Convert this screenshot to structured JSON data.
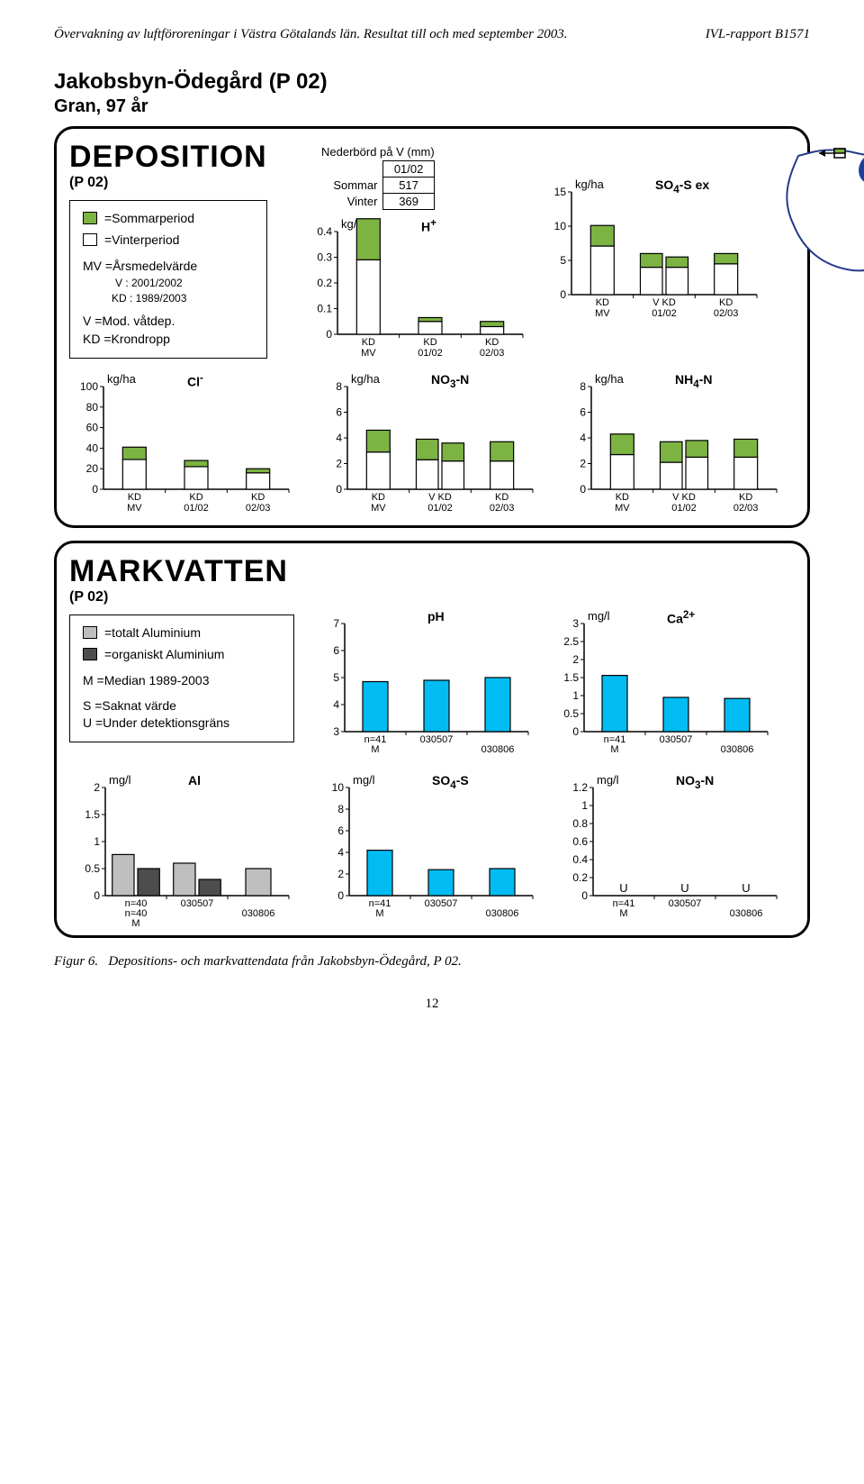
{
  "header": {
    "left": "Övervakning av luftföroreningar i Västra Götalands län. Resultat till och med september 2003.",
    "right": "IVL-rapport B1571"
  },
  "station": {
    "title": "Jakobsbyn-Ödegård (P 02)",
    "subtitle": "Gran, 97 år"
  },
  "deposition": {
    "heading": "DEPOSITION",
    "pcode": "(P 02)",
    "precip": {
      "caption": "Nederbörd på V (mm)",
      "period": "01/02",
      "rows": [
        {
          "label": "Sommar",
          "value": "517"
        },
        {
          "label": "Vinter",
          "value": "369"
        }
      ]
    },
    "legend": {
      "summer_label": "=Sommarperiod",
      "summer_color": "#7cb342",
      "winter_label": "=Vinterperiod",
      "winter_color": "#ffffff",
      "mv_label": "MV =Årsmedelvärde",
      "v_kd_lines": [
        "V : 2001/2002",
        "KD : 1989/2003"
      ],
      "v_label": "V =Mod. våtdep.",
      "kd_label": "KD =Krondropp"
    },
    "charts_top": [
      {
        "id": "h_plus",
        "ylabel": "kg/ha",
        "title_html": "H<sup>+</sup>",
        "ylim": [
          0,
          0.4
        ],
        "ytick_step": 0.1,
        "groups": [
          {
            "bottom_labels": [
              "KD",
              "MV"
            ],
            "bars": [
              {
                "s": 0.16,
                "w": 0.29
              }
            ]
          },
          {
            "bottom_labels": [
              "KD",
              "01/02"
            ],
            "bars": [
              {
                "s": 0.015,
                "w": 0.05
              }
            ]
          },
          {
            "bottom_labels": [
              "KD",
              "02/03"
            ],
            "bars": [
              {
                "s": 0.02,
                "w": 0.03
              }
            ]
          }
        ]
      },
      {
        "id": "so4s",
        "ylabel": "kg/ha",
        "title_html": "SO<sub>4</sub>-S ex",
        "ylim": [
          0,
          15
        ],
        "ytick_step": 5,
        "groups": [
          {
            "bottom_labels": [
              "KD",
              "MV"
            ],
            "bars": [
              {
                "s": 3.0,
                "w": 7.1
              }
            ]
          },
          {
            "bottom_labels": [
              "V  KD",
              "01/02"
            ],
            "bars": [
              {
                "s": 2.0,
                "w": 4.0
              },
              {
                "s": 1.5,
                "w": 4.0
              }
            ]
          },
          {
            "bottom_labels": [
              "KD",
              "02/03"
            ],
            "bars": [
              {
                "s": 1.5,
                "w": 4.5
              }
            ]
          }
        ]
      }
    ],
    "charts_row2": [
      {
        "id": "cl",
        "ylabel": "kg/ha",
        "title_html": "Cl<sup>-</sup>",
        "ylim": [
          0,
          100
        ],
        "ytick_step": 20,
        "groups": [
          {
            "bottom_labels": [
              "KD",
              "MV"
            ],
            "bars": [
              {
                "s": 12,
                "w": 29
              }
            ]
          },
          {
            "bottom_labels": [
              "KD",
              "01/02"
            ],
            "bars": [
              {
                "s": 6,
                "w": 22
              }
            ]
          },
          {
            "bottom_labels": [
              "KD",
              "02/03"
            ],
            "bars": [
              {
                "s": 4,
                "w": 16
              }
            ]
          }
        ]
      },
      {
        "id": "no3n",
        "ylabel": "kg/ha",
        "title_html": "NO<sub>3</sub>-N",
        "ylim": [
          0,
          8
        ],
        "ytick_step": 2,
        "groups": [
          {
            "bottom_labels": [
              "KD",
              "MV"
            ],
            "bars": [
              {
                "s": 1.7,
                "w": 2.9
              }
            ]
          },
          {
            "bottom_labels": [
              "V  KD",
              "01/02"
            ],
            "bars": [
              {
                "s": 1.6,
                "w": 2.3
              },
              {
                "s": 1.4,
                "w": 2.2
              }
            ]
          },
          {
            "bottom_labels": [
              "KD",
              "02/03"
            ],
            "bars": [
              {
                "s": 1.5,
                "w": 2.2
              }
            ]
          }
        ]
      },
      {
        "id": "nh4n",
        "ylabel": "kg/ha",
        "title_html": "NH<sub>4</sub>-N",
        "ylim": [
          0,
          8
        ],
        "ytick_step": 2,
        "groups": [
          {
            "bottom_labels": [
              "KD",
              "MV"
            ],
            "bars": [
              {
                "s": 1.6,
                "w": 2.7
              }
            ]
          },
          {
            "bottom_labels": [
              "V  KD",
              "01/02"
            ],
            "bars": [
              {
                "s": 1.6,
                "w": 2.1
              },
              {
                "s": 1.3,
                "w": 2.5
              }
            ]
          },
          {
            "bottom_labels": [
              "KD",
              "02/03"
            ],
            "bars": [
              {
                "s": 1.4,
                "w": 2.5
              }
            ]
          }
        ]
      }
    ],
    "colors": {
      "summer": "#7cb342",
      "winter": "#ffffff",
      "stroke": "#000000"
    }
  },
  "markvatten": {
    "heading": "MARKVATTEN",
    "pcode": "(P 02)",
    "legend": {
      "tot_al_label": "=totalt Aluminium",
      "tot_al_color": "#bfbfbf",
      "org_al_label": "=organiskt Aluminium",
      "org_al_color": "#4d4d4d",
      "m_label": "M =Median 1989-2003",
      "s_label": "S =Saknat värde",
      "u_label": "U =Under detektionsgräns"
    },
    "charts_top": [
      {
        "id": "ph",
        "ylabel": "",
        "title_html": "pH",
        "ylim": [
          3,
          7
        ],
        "ytick_step": 1,
        "groups": [
          {
            "bottom_labels": [
              "n=41",
              "M"
            ],
            "bars": [
              {
                "v": 4.85,
                "color": "#00bcf2"
              }
            ]
          },
          {
            "bottom_labels": [
              "030507",
              ""
            ],
            "bars": [
              {
                "v": 4.9,
                "color": "#00bcf2"
              }
            ]
          },
          {
            "bottom_labels": [
              "",
              "030806"
            ],
            "bars": [
              {
                "v": 5.0,
                "color": "#00bcf2"
              }
            ]
          }
        ]
      },
      {
        "id": "ca",
        "ylabel": "mg/l",
        "title_html": "Ca<sup>2+</sup>",
        "ylim": [
          0,
          3
        ],
        "ytick_step": 0.5,
        "groups": [
          {
            "bottom_labels": [
              "n=41",
              "M"
            ],
            "bars": [
              {
                "v": 1.56,
                "color": "#00bcf2"
              }
            ]
          },
          {
            "bottom_labels": [
              "030507",
              ""
            ],
            "bars": [
              {
                "v": 0.95,
                "color": "#00bcf2"
              }
            ]
          },
          {
            "bottom_labels": [
              "",
              "030806"
            ],
            "bars": [
              {
                "v": 0.92,
                "color": "#00bcf2"
              }
            ]
          }
        ]
      }
    ],
    "charts_row2": [
      {
        "id": "al",
        "ylabel": "mg/l",
        "title_html": "Al",
        "ylim": [
          0,
          2
        ],
        "ytick_step": 0.5,
        "groups": [
          {
            "bottom_labels": [
              "n=40",
              "n=40",
              "M"
            ],
            "bars": [
              {
                "v": 0.76,
                "color": "#bfbfbf"
              },
              {
                "v": 0.5,
                "color": "#4d4d4d"
              }
            ]
          },
          {
            "bottom_labels": [
              "030507",
              ""
            ],
            "bars": [
              {
                "v": 0.6,
                "color": "#bfbfbf"
              },
              {
                "v": 0.3,
                "color": "#4d4d4d"
              }
            ]
          },
          {
            "bottom_labels": [
              "",
              "030806"
            ],
            "bars": [
              {
                "v": 0.5,
                "color": "#bfbfbf"
              }
            ]
          }
        ]
      },
      {
        "id": "so4s_w",
        "ylabel": "mg/l",
        "title_html": "SO<sub>4</sub>-S",
        "ylim": [
          0,
          10
        ],
        "ytick_step": 2,
        "groups": [
          {
            "bottom_labels": [
              "n=41",
              "M"
            ],
            "bars": [
              {
                "v": 4.2,
                "color": "#00bcf2"
              }
            ]
          },
          {
            "bottom_labels": [
              "030507",
              ""
            ],
            "bars": [
              {
                "v": 2.4,
                "color": "#00bcf2"
              }
            ]
          },
          {
            "bottom_labels": [
              "",
              "030806"
            ],
            "bars": [
              {
                "v": 2.5,
                "color": "#00bcf2"
              }
            ]
          }
        ]
      },
      {
        "id": "no3n_w",
        "ylabel": "mg/l",
        "title_html": "NO<sub>3</sub>-N",
        "ylim": [
          0,
          1.2
        ],
        "ytick_step": 0.2,
        "groups": [
          {
            "bottom_labels": [
              "n=41",
              "M"
            ],
            "bars": [
              {
                "v": 0,
                "color": "#00bcf2",
                "letter": "U"
              }
            ]
          },
          {
            "bottom_labels": [
              "030507",
              ""
            ],
            "bars": [
              {
                "v": 0,
                "color": "#00bcf2",
                "letter": "U"
              }
            ]
          },
          {
            "bottom_labels": [
              "",
              "030806"
            ],
            "bars": [
              {
                "v": 0,
                "color": "#00bcf2",
                "letter": "U"
              }
            ]
          }
        ]
      }
    ],
    "bar_color": "#00bcf2"
  },
  "footer": {
    "label": "Figur 6.",
    "text": "Depositions- och markvattendata från Jakobsbyn-Ödegård, P 02."
  },
  "map_colors": {
    "land": "#ffffff",
    "water": "#1e3f9e",
    "stroke": "#233a8a"
  },
  "page_number": "12"
}
